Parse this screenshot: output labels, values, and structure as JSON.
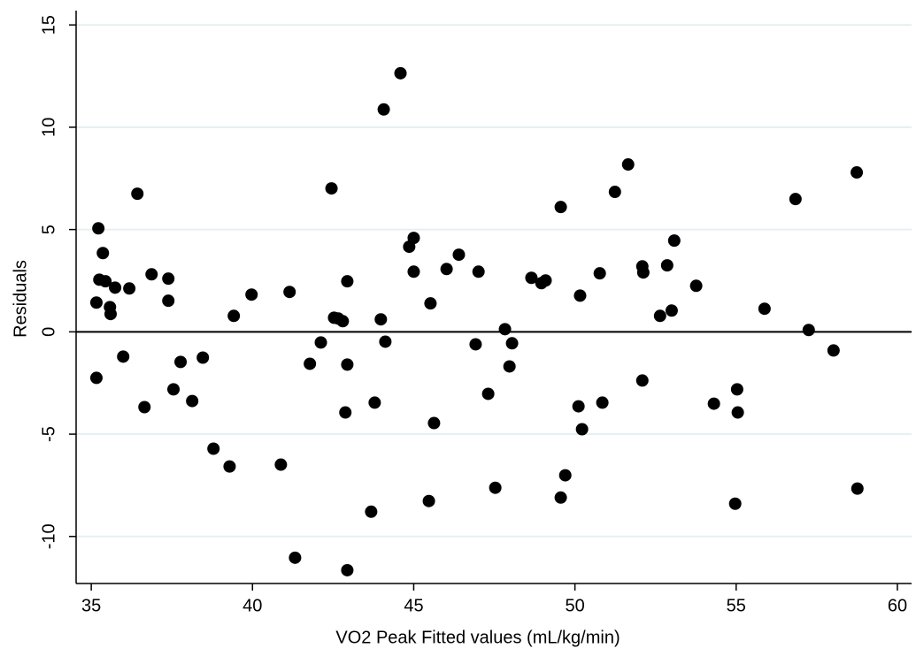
{
  "chart_data": {
    "type": "scatter",
    "x_label": "VO2 Peak Fitted values (mL/kg/min)",
    "y_label": "Residuals",
    "xlim": [
      34.53,
      60.44
    ],
    "ylim": [
      -12.3,
      15.7
    ],
    "xticks": [
      35,
      40,
      45,
      50,
      55,
      60
    ],
    "yticks": [
      -10,
      -5,
      0,
      5,
      10,
      15
    ],
    "grid": true,
    "grid_color": "#e6eff1",
    "color": "#000000",
    "reference_line": 0,
    "x": [
      35.22,
      35.36,
      35.25,
      35.44,
      35.16,
      35.58,
      35.6,
      35.74,
      36.18,
      35.16,
      35.99,
      36.43,
      36.65,
      36.87,
      37.39,
      37.39,
      37.55,
      37.77,
      38.13,
      38.46,
      38.79,
      39.29,
      39.42,
      39.97,
      40.88,
      41.15,
      41.32,
      41.78,
      42.12,
      42.45,
      42.53,
      42.66,
      42.8,
      42.94,
      42.94,
      42.88,
      42.94,
      43.68,
      43.79,
      43.98,
      44.07,
      44.12,
      44.59,
      44.86,
      45.0,
      45.0,
      45.47,
      45.52,
      45.63,
      46.02,
      46.4,
      46.92,
      47.01,
      47.31,
      47.53,
      47.83,
      48.05,
      47.97,
      48.65,
      48.96,
      49.09,
      49.56,
      49.56,
      49.7,
      50.11,
      50.16,
      50.22,
      50.77,
      50.85,
      51.24,
      51.65,
      52.09,
      52.09,
      52.12,
      52.64,
      52.86,
      53.0,
      53.08,
      53.76,
      54.31,
      55.03,
      55.05,
      54.97,
      55.88,
      56.84,
      57.25,
      58.02,
      58.74,
      58.76
    ],
    "y": [
      5.06,
      3.85,
      2.55,
      2.47,
      1.43,
      1.21,
      0.87,
      2.16,
      2.12,
      -2.25,
      -1.21,
      6.75,
      -3.68,
      2.81,
      2.6,
      1.52,
      -2.81,
      -1.47,
      -3.38,
      -1.26,
      -5.71,
      -6.58,
      0.78,
      1.82,
      -6.49,
      1.95,
      -11.04,
      -1.56,
      -0.52,
      7.01,
      0.69,
      0.65,
      0.52,
      2.47,
      -1.6,
      -3.94,
      -11.65,
      -8.79,
      -3.46,
      0.61,
      10.87,
      -0.48,
      12.64,
      4.16,
      4.59,
      2.94,
      -8.27,
      1.39,
      -4.46,
      3.07,
      3.77,
      -0.61,
      2.94,
      -3.03,
      -7.62,
      0.13,
      -0.56,
      -1.69,
      2.64,
      2.38,
      2.51,
      -8.1,
      6.1,
      -7.01,
      -3.64,
      1.77,
      -4.76,
      2.86,
      -3.46,
      6.84,
      8.18,
      -2.38,
      3.2,
      2.9,
      0.78,
      3.25,
      1.04,
      4.46,
      2.25,
      -3.51,
      -2.81,
      -3.94,
      -8.4,
      1.13,
      6.49,
      0.09,
      -0.91,
      7.79,
      -7.66
    ]
  }
}
